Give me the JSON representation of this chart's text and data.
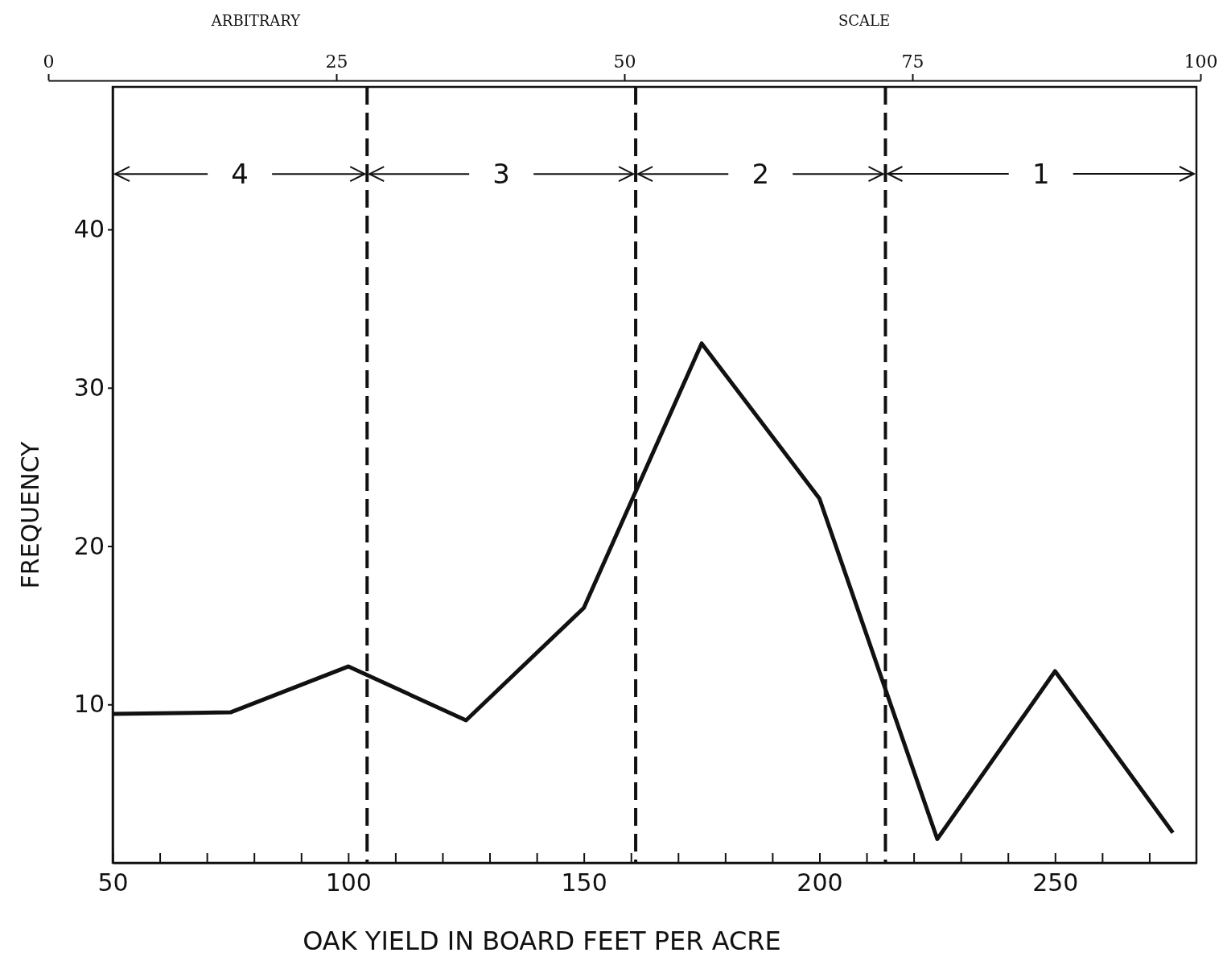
{
  "chart_data": {
    "type": "line",
    "xlabel": "OAK YIELD IN BOARD FEET PER ACRE",
    "ylabel": "FREQUENCY",
    "x2label": "ARBITRARY SCALE",
    "x": [
      50,
      75,
      100,
      125,
      150,
      175,
      200,
      225,
      250,
      275
    ],
    "series": [
      {
        "color": "#111111",
        "values": [
          9.4,
          9.5,
          12.4,
          9.0,
          16.1,
          32.8,
          23.0,
          1.5,
          12.1,
          1.9
        ]
      }
    ],
    "xlim": [
      50,
      280
    ],
    "ylim": [
      0,
      49
    ],
    "xticks": [
      50,
      {
        "value": 60,
        "label": null
      },
      {
        "value": 70,
        "label": null
      },
      {
        "value": 80,
        "label": null
      },
      {
        "value": 90,
        "label": null
      },
      100,
      {
        "value": 110,
        "label": null
      },
      {
        "value": 120,
        "label": null
      },
      {
        "value": 130,
        "label": null
      },
      {
        "value": 140,
        "label": null
      },
      150,
      {
        "value": 160,
        "label": null
      },
      {
        "value": 170,
        "label": null
      },
      {
        "value": 180,
        "label": null
      },
      {
        "value": 190,
        "label": null
      },
      200,
      {
        "value": 210,
        "label": null
      },
      {
        "value": 220,
        "label": null
      },
      {
        "value": 230,
        "label": null
      },
      {
        "value": 240,
        "label": null
      },
      250,
      {
        "value": 260,
        "label": null
      },
      {
        "value": 270,
        "label": null
      }
    ],
    "yticks": [
      10,
      20,
      30,
      40
    ],
    "x2lim": [
      0,
      100
    ],
    "x2ticks": [
      0,
      25,
      50,
      75,
      100
    ],
    "ref_lines": [
      {
        "axis": "x",
        "value": 104,
        "line_style": "dashed"
      },
      {
        "axis": "x",
        "value": 161,
        "line_style": "dashed"
      },
      {
        "axis": "x",
        "value": 214,
        "line_style": "dashed"
      }
    ],
    "annotations": [
      {
        "text": "4",
        "x": 104,
        "y": 43.5
      },
      {
        "text": "3",
        "x": 161,
        "y": 43.5
      },
      {
        "text": "2",
        "x": 214,
        "y": 43.5
      },
      "1"
    ],
    "grid": false,
    "marker": "none",
    "line_style": "solid"
  }
}
